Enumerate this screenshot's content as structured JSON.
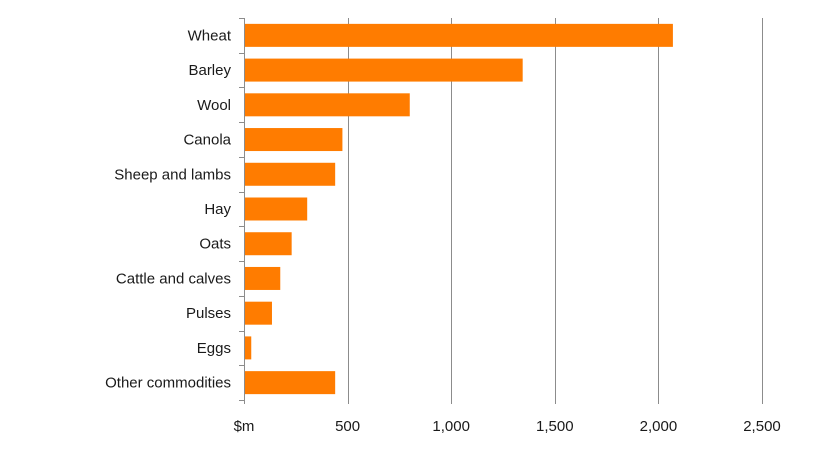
{
  "chart_data": {
    "type": "bar",
    "orientation": "horizontal",
    "categories": [
      "Wheat",
      "Barley",
      "Wool",
      "Canola",
      "Sheep and lambs",
      "Hay",
      "Oats",
      "Cattle and calves",
      "Pulses",
      "Eggs",
      "Other commodities"
    ],
    "values": [
      2070,
      1345,
      800,
      475,
      440,
      305,
      230,
      175,
      135,
      35,
      440
    ],
    "xlim": [
      0,
      2500
    ],
    "x_ticks": [
      0,
      500,
      1000,
      1500,
      2000,
      2500
    ],
    "x_tick_labels": [
      "$m",
      "500",
      "1,000",
      "1,500",
      "2,000",
      "2,500"
    ],
    "bar_color": "#ff7c00",
    "gridlines": true,
    "legend": "none"
  }
}
